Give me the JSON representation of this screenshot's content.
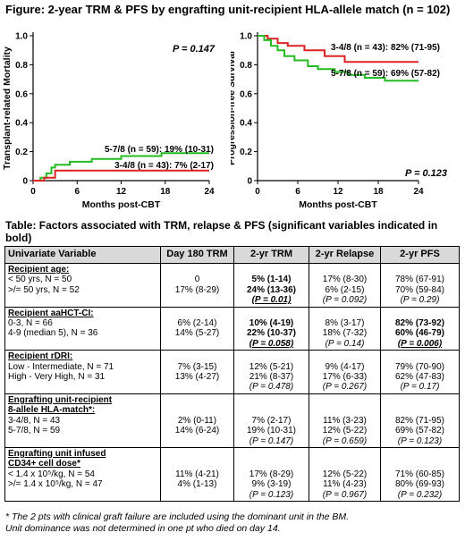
{
  "figure_title": "Figure: 2-year TRM & PFS by engrafting unit-recipient HLA-allele match (n = 102)",
  "chart_data": [
    {
      "type": "line",
      "ylabel": "Transplant-related Mortality",
      "xlabel": "Months post-CBT",
      "xlim": [
        0,
        24
      ],
      "ylim": [
        0,
        1.0
      ],
      "xticks": [
        "0",
        "6",
        "12",
        "18",
        "24"
      ],
      "yticks": [
        "0",
        "0.2",
        "0.4",
        "0.6",
        "0.8",
        "1.0"
      ],
      "pvalue": "P = 0.147",
      "series": [
        {
          "name": "5-7/8 (n = 59): 19% (10-31)",
          "color": "#22bb22",
          "x": [
            0,
            1.0,
            1.0,
            1.8,
            1.8,
            2.5,
            2.5,
            3.0,
            3.0,
            5.0,
            5.0,
            8.0,
            8.0,
            12.0,
            12.0,
            17.5,
            17.5,
            21.0,
            21.0,
            24
          ],
          "y": [
            0,
            0,
            0.02,
            0.02,
            0.05,
            0.05,
            0.09,
            0.09,
            0.11,
            0.11,
            0.13,
            0.13,
            0.15,
            0.15,
            0.17,
            0.17,
            0.19,
            0.19,
            0.19,
            0.19
          ]
        },
        {
          "name": "3-4/8 (n = 43): 7% (2-17)",
          "color": "#dd2222",
          "x": [
            0,
            1.5,
            1.5,
            3.0,
            3.0,
            24
          ],
          "y": [
            0,
            0,
            0.02,
            0.02,
            0.07,
            0.07
          ]
        }
      ]
    },
    {
      "type": "line",
      "ylabel": "Progression-free Survival",
      "xlabel": "Months post-CBT",
      "xlim": [
        0,
        24
      ],
      "ylim": [
        0,
        1.0
      ],
      "xticks": [
        "0",
        "6",
        "12",
        "18",
        "24"
      ],
      "yticks": [
        "0",
        "0.2",
        "0.4",
        "0.6",
        "0.8",
        "1.0"
      ],
      "pvalue": "P = 0.123",
      "series": [
        {
          "name": "3-4/8 (n = 43): 82% (71-95)",
          "color": "#dd2222",
          "x": [
            0,
            1.5,
            1.5,
            3.0,
            3.0,
            4.5,
            4.5,
            7.0,
            7.0,
            10.0,
            10.0,
            13.0,
            13.0,
            24
          ],
          "y": [
            1.0,
            1.0,
            0.98,
            0.98,
            0.95,
            0.95,
            0.93,
            0.93,
            0.9,
            0.9,
            0.86,
            0.86,
            0.82,
            0.82
          ]
        },
        {
          "name": "5-7/8 (n = 59): 69% (57-82)",
          "color": "#22bb22",
          "x": [
            0,
            1.0,
            1.0,
            2.0,
            2.0,
            3.0,
            3.0,
            4.0,
            4.0,
            5.5,
            5.5,
            7.5,
            7.5,
            9.0,
            9.0,
            11.5,
            11.5,
            13.5,
            13.5,
            16.0,
            16.0,
            19.0,
            19.0,
            24
          ],
          "y": [
            1.0,
            1.0,
            0.97,
            0.97,
            0.93,
            0.93,
            0.9,
            0.9,
            0.86,
            0.86,
            0.83,
            0.83,
            0.79,
            0.79,
            0.77,
            0.77,
            0.75,
            0.75,
            0.73,
            0.73,
            0.71,
            0.71,
            0.69,
            0.69
          ]
        }
      ]
    }
  ],
  "table_title": "Table: Factors associated with TRM, relapse & PFS (significant variables indicated in bold)",
  "table": {
    "headers": [
      "Univariate Variable",
      "Day 180 TRM",
      "2-yr TRM",
      "2-yr Relapse",
      "2-yr PFS"
    ],
    "groups": [
      {
        "header": "Recipient age:",
        "rows": [
          [
            "< 50 yrs, N = 50",
            "0",
            "5% (1-14)",
            "17% (8-30)",
            "78% (67-91)"
          ],
          [
            ">/= 50 yrs, N = 52",
            "17% (8-29)",
            "24% (13-36)",
            "6% (2-15)",
            "70% (59-84)"
          ]
        ],
        "pvalues": [
          "(P = 0.01)",
          "(P = 0.092)",
          "(P = 0.29)"
        ]
      },
      {
        "header": "Recipient aaHCT-CI:",
        "rows": [
          [
            "0-3, N = 66",
            "6% (2-14)",
            "10% (4-19)",
            "8% (3-17)",
            "82% (73-92)"
          ],
          [
            "4-9 (median 5), N = 36",
            "14% (5-27)",
            "22% (10-37)",
            "18% (7-32)",
            "60% (46-79)"
          ]
        ],
        "pvalues": [
          "(P = 0.058)",
          "(P = 0.14)",
          "(P = 0.006)"
        ]
      },
      {
        "header": "Recipient rDRI:",
        "rows": [
          [
            "Low - Intermediate, N = 71",
            "7% (3-15)",
            "12% (5-21)",
            "9% (4-17)",
            "79% (70-90)"
          ],
          [
            "High - Very High, N = 31",
            "13% (4-27)",
            "21% (8-37)",
            "17% (6-33)",
            "62% (47-83)"
          ]
        ],
        "pvalues": [
          "(P = 0.478)",
          "(P = 0.267)",
          "(P = 0.17)"
        ]
      },
      {
        "header": "Engrafting unit-recipient",
        "header2": "8-allele HLA-match*:",
        "rows": [
          [
            "3-4/8, N = 43",
            "2% (0-11)",
            "7% (2-17)",
            "11% (3-23)",
            "82% (71-95)"
          ],
          [
            "5-7/8, N = 59",
            "14% (6-24)",
            "19% (10-31)",
            "12% (5-22)",
            "69% (57-82)"
          ]
        ],
        "pvalues": [
          "(P = 0.147)",
          "(P = 0.659)",
          "(P = 0.123)"
        ]
      },
      {
        "header": "Engrafting unit infused",
        "header2": "CD34+ cell dose*",
        "rows": [
          [
            "< 1.4 x 10⁵/kg, N = 54",
            "11% (4-21)",
            "17% (8-29)",
            "12% (5-22)",
            "71% (60-85)"
          ],
          [
            ">/= 1.4 x 10⁵/kg, N = 47",
            "4% (1-13)",
            "9% (3-19)",
            "11% (4-23)",
            "80% (69-93)"
          ]
        ],
        "pvalues": [
          "(P = 0.123)",
          "(P = 0.967)",
          "(P = 0.232)"
        ]
      }
    ]
  },
  "footnote": {
    "line1": "* The 2 pts with clinical graft failure are included using the dominant unit in the BM.",
    "line2": "Unit dominance was not determined in one pt who died on day 14."
  }
}
